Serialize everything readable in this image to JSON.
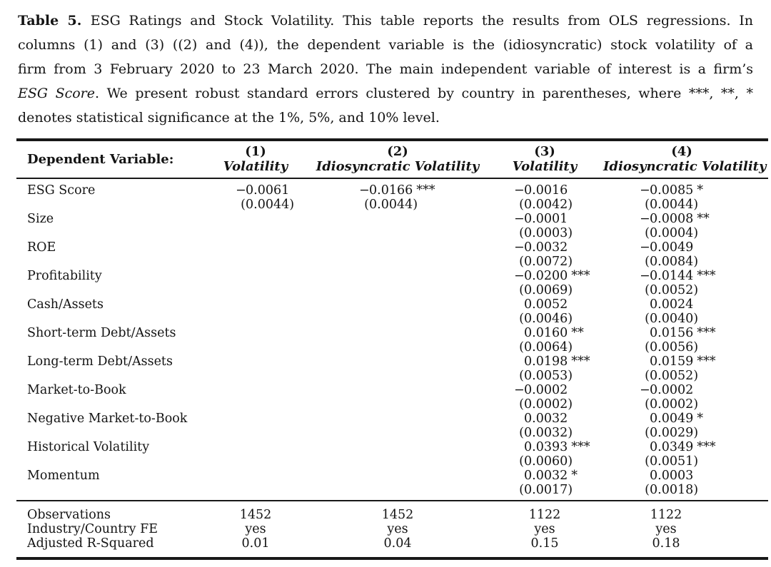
{
  "colors": {
    "text": "#141414",
    "rule": "#181818",
    "background": "#ffffff"
  },
  "caption": {
    "lines": [
      {
        "justify": true,
        "segments": [
          {
            "text": "Table 5. ",
            "bold": true
          },
          {
            "text": "ESG Ratings and Stock Volatility. This table reports the results from OLS regressions. In"
          }
        ]
      },
      {
        "justify": true,
        "segments": [
          {
            "text": "columns (1) and (3) ((2) and (4)), the dependent variable is the (idiosyncratic) stock volatility of a"
          }
        ]
      },
      {
        "justify": true,
        "segments": [
          {
            "text": "firm from 3 February 2020 to 23 March 2020. The main independent variable of interest is a firm’s"
          }
        ]
      },
      {
        "justify": true,
        "segments": [
          {
            "text": "ESG Score",
            "italic": true
          },
          {
            "text": ". We present robust standard errors clustered by country in parentheses, where ***, **, *"
          }
        ]
      },
      {
        "justify": false,
        "segments": [
          {
            "text": "denotes statistical significance at the 1%, 5%, and 10% level."
          }
        ]
      }
    ]
  },
  "table": {
    "header": {
      "label": "Dependent Variable:",
      "cols": [
        {
          "num": "(1)",
          "name": "Volatility"
        },
        {
          "num": "(2)",
          "name": "Idiosyncratic Volatility"
        },
        {
          "num": "(3)",
          "name": "Volatility"
        },
        {
          "num": "(4)",
          "name": "Idiosyncratic Volatility"
        }
      ]
    },
    "rows": [
      {
        "label": "ESG Score",
        "cells": [
          {
            "coef": "−0.0061",
            "stars": "",
            "se": "(0.0044)"
          },
          {
            "coef": "−0.0166",
            "stars": "***",
            "se": "(0.0044)"
          },
          {
            "coef": "−0.0016",
            "stars": "",
            "se": "(0.0042)"
          },
          {
            "coef": "−0.0085",
            "stars": "*",
            "se": "(0.0044)"
          }
        ]
      },
      {
        "label": "Size",
        "cells": [
          null,
          null,
          {
            "coef": "−0.0001",
            "stars": "",
            "se": "(0.0003)"
          },
          {
            "coef": "−0.0008",
            "stars": "**",
            "se": "(0.0004)"
          }
        ]
      },
      {
        "label": "ROE",
        "cells": [
          null,
          null,
          {
            "coef": "−0.0032",
            "stars": "",
            "se": "(0.0072)"
          },
          {
            "coef": "−0.0049",
            "stars": "",
            "se": "(0.0084)"
          }
        ]
      },
      {
        "label": "Profitability",
        "cells": [
          null,
          null,
          {
            "coef": "−0.0200",
            "stars": "***",
            "se": "(0.0069)"
          },
          {
            "coef": "−0.0144",
            "stars": "***",
            "se": "(0.0052)"
          }
        ]
      },
      {
        "label": "Cash/Assets",
        "cells": [
          null,
          null,
          {
            "coef": "0.0052",
            "stars": "",
            "se": "(0.0046)"
          },
          {
            "coef": "0.0024",
            "stars": "",
            "se": "(0.0040)"
          }
        ]
      },
      {
        "label": "Short-term Debt/Assets",
        "cells": [
          null,
          null,
          {
            "coef": "0.0160",
            "stars": "**",
            "se": "(0.0064)"
          },
          {
            "coef": "0.0156",
            "stars": "***",
            "se": "(0.0056)"
          }
        ]
      },
      {
        "label": "Long-term Debt/Assets",
        "cells": [
          null,
          null,
          {
            "coef": "0.0198",
            "stars": "***",
            "se": "(0.0053)"
          },
          {
            "coef": "0.0159",
            "stars": "***",
            "se": "(0.0052)"
          }
        ]
      },
      {
        "label": "Market-to-Book",
        "cells": [
          null,
          null,
          {
            "coef": "−0.0002",
            "stars": "",
            "se": "(0.0002)"
          },
          {
            "coef": "−0.0002",
            "stars": "",
            "se": "(0.0002)"
          }
        ]
      },
      {
        "label": "Negative Market-to-Book",
        "cells": [
          null,
          null,
          {
            "coef": "0.0032",
            "stars": "",
            "se": "(0.0032)"
          },
          {
            "coef": "0.0049",
            "stars": "*",
            "se": "(0.0029)"
          }
        ]
      },
      {
        "label": "Historical Volatility",
        "cells": [
          null,
          null,
          {
            "coef": "0.0393",
            "stars": "***",
            "se": "(0.0060)"
          },
          {
            "coef": "0.0349",
            "stars": "***",
            "se": "(0.0051)"
          }
        ]
      },
      {
        "label": "Momentum",
        "cells": [
          null,
          null,
          {
            "coef": "0.0032",
            "stars": "*",
            "se": "(0.0017)"
          },
          {
            "coef": "0.0003",
            "stars": "",
            "se": "(0.0018)"
          }
        ]
      }
    ],
    "footer": [
      {
        "label": "Observations",
        "values": [
          "1452",
          "1452",
          "1122",
          "1122"
        ]
      },
      {
        "label": "Industry/Country FE",
        "values": [
          "yes",
          "yes",
          "yes",
          "yes"
        ]
      },
      {
        "label": "Adjusted R-Squared",
        "values": [
          "0.01",
          "0.04",
          "0.15",
          "0.18"
        ]
      }
    ]
  }
}
